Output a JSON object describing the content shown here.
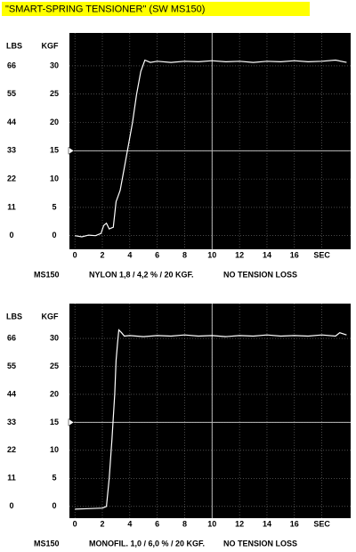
{
  "title": "\"SMART-SPRING TENSIONER\" (SW MS150)",
  "chart_data": [
    {
      "type": "line",
      "y_label": "KGF",
      "y2_label": "LBS",
      "x": [
        0,
        0.5,
        1,
        1.5,
        1.9,
        2.1,
        2.3,
        2.5,
        2.8,
        3.0,
        3.3,
        3.6,
        3.9,
        4.2,
        4.5,
        4.8,
        5.1,
        5.5,
        6,
        7,
        8,
        9,
        10,
        11,
        12,
        13,
        14,
        15,
        16,
        17,
        18,
        19,
        19.8
      ],
      "values": [
        0,
        -0.2,
        0.1,
        0,
        0.4,
        1.8,
        2.2,
        1.2,
        1.5,
        6,
        8,
        12,
        16,
        20,
        25,
        29,
        31,
        30.6,
        30.8,
        30.6,
        30.8,
        30.7,
        30.9,
        30.7,
        30.8,
        30.6,
        30.8,
        30.7,
        30.9,
        30.7,
        30.8,
        31,
        30.6
      ],
      "color": "#ffffff",
      "xlim": [
        -0.4,
        20.1
      ],
      "ylim": [
        -2.4,
        35.8
      ],
      "y2lim": [
        -5.28,
        78.76
      ],
      "xticks": [
        0,
        2,
        4,
        6,
        8,
        10,
        12,
        14,
        16,
        {
          "value": 18,
          "label": "SEC"
        }
      ],
      "yticks": [
        0,
        5,
        10,
        15,
        20,
        25,
        30
      ],
      "y2ticks": [
        0,
        11,
        22,
        33,
        44,
        55,
        66
      ],
      "grid": true,
      "crosshair": {
        "x": 10,
        "y": 15
      },
      "model": "MS150",
      "note": "NYLON 1,8 / 4,2 % / 20 KGF.",
      "annotation": "NO TENSION LOSS",
      "annotation_color": "#e01818"
    },
    {
      "type": "line",
      "y_label": "KGF",
      "y2_label": "LBS",
      "x": [
        0,
        1,
        2,
        2.3,
        2.5,
        2.7,
        2.9,
        3.0,
        3.1,
        3.2,
        3.4,
        3.6,
        4,
        5,
        6,
        7,
        8,
        9,
        10,
        11,
        12,
        13,
        14,
        15,
        16,
        17,
        18,
        19,
        19.3,
        19.8
      ],
      "values": [
        -0.5,
        -0.4,
        -0.3,
        0,
        5,
        12,
        20,
        26,
        29,
        31.5,
        31,
        30.4,
        30.5,
        30.3,
        30.5,
        30.4,
        30.6,
        30.4,
        30.5,
        30.3,
        30.5,
        30.4,
        30.6,
        30.4,
        30.5,
        30.4,
        30.6,
        30.4,
        31,
        30.6
      ],
      "color": "#ffffff",
      "xlim": [
        -0.4,
        20.1
      ],
      "ylim": [
        -2.1,
        36.2
      ],
      "y2lim": [
        -4.62,
        79.64
      ],
      "xticks": [
        0,
        2,
        4,
        6,
        8,
        10,
        12,
        14,
        16,
        {
          "value": 18,
          "label": "SEC"
        }
      ],
      "yticks": [
        0,
        5,
        10,
        15,
        20,
        25,
        30
      ],
      "y2ticks": [
        0,
        11,
        22,
        33,
        44,
        55,
        66
      ],
      "grid": true,
      "crosshair": {
        "x": 10,
        "y": 15
      },
      "model": "MS150",
      "note": "MONOFIL. 1,0 / 6,0 % / 20 KGF.",
      "annotation": "NO TENSION LOSS",
      "annotation_color": "#e01818"
    }
  ]
}
